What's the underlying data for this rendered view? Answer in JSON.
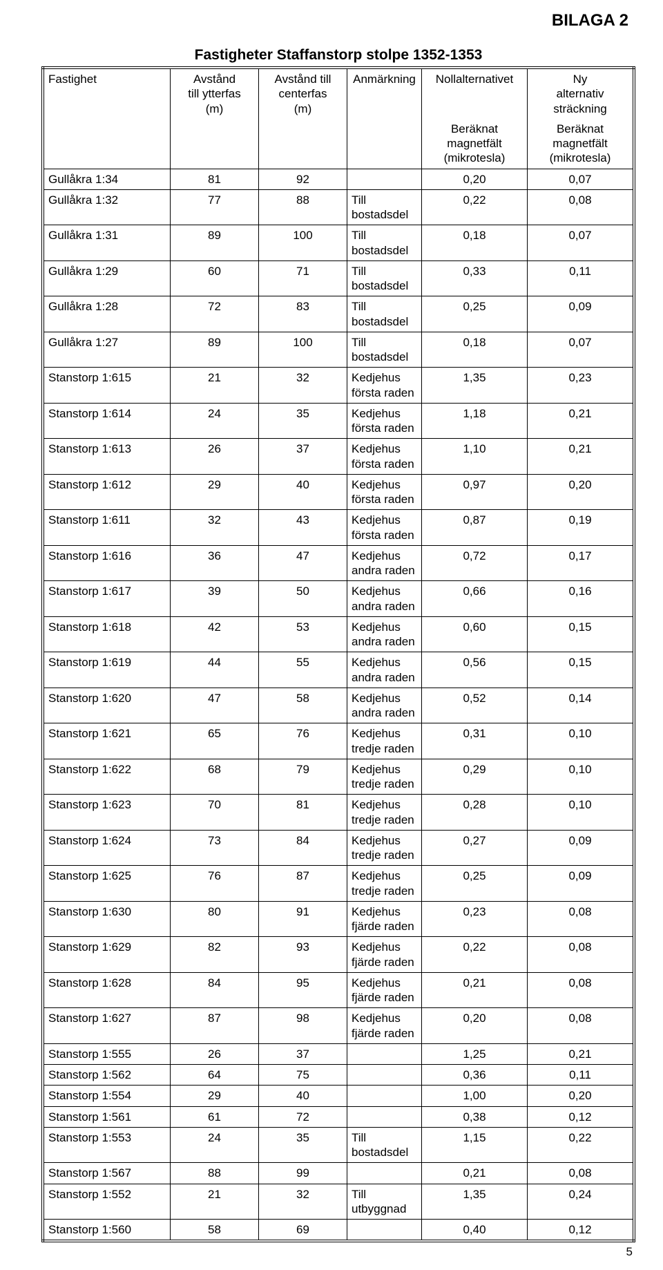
{
  "bilaga": "BILAGA 2",
  "title": "Fastigheter Staffanstorp stolpe 1352-1353",
  "header": {
    "fastighet": "Fastighet",
    "ytterfas": "Avstånd\ntill ytterfas\n(m)",
    "centerfas": "Avstånd till\ncenterfas\n(m)",
    "anm": "Anmärkning",
    "noll": "Nollalternativet",
    "alt": "Ny\nalternativ\nsträckning",
    "sub": "Beräknat\nmagnetfält\n(mikrotesla)"
  },
  "rows": [
    {
      "f": "Gullåkra 1:34",
      "y": "81",
      "c": "92",
      "a": "",
      "n": "0,20",
      "al": "0,07"
    },
    {
      "f": "Gullåkra 1:32",
      "y": "77",
      "c": "88",
      "a": "Till bostadsdel",
      "n": "0,22",
      "al": "0,08"
    },
    {
      "f": "Gullåkra 1:31",
      "y": "89",
      "c": "100",
      "a": "Till bostadsdel",
      "n": "0,18",
      "al": "0,07"
    },
    {
      "f": "Gullåkra 1:29",
      "y": "60",
      "c": "71",
      "a": "Till bostadsdel",
      "n": "0,33",
      "al": "0,11"
    },
    {
      "f": "Gullåkra 1:28",
      "y": "72",
      "c": "83",
      "a": "Till bostadsdel",
      "n": "0,25",
      "al": "0,09"
    },
    {
      "f": "Gullåkra 1:27",
      "y": "89",
      "c": "100",
      "a": "Till bostadsdel",
      "n": "0,18",
      "al": "0,07"
    },
    {
      "f": "Stanstorp 1:615",
      "y": "21",
      "c": "32",
      "a": "Kedjehus första raden",
      "n": "1,35",
      "al": "0,23"
    },
    {
      "f": "Stanstorp 1:614",
      "y": "24",
      "c": "35",
      "a": "Kedjehus första raden",
      "n": "1,18",
      "al": "0,21"
    },
    {
      "f": "Stanstorp 1:613",
      "y": "26",
      "c": "37",
      "a": "Kedjehus första raden",
      "n": "1,10",
      "al": "0,21"
    },
    {
      "f": "Stanstorp 1:612",
      "y": "29",
      "c": "40",
      "a": "Kedjehus första raden",
      "n": "0,97",
      "al": "0,20"
    },
    {
      "f": "Stanstorp 1:611",
      "y": "32",
      "c": "43",
      "a": "Kedjehus första raden",
      "n": "0,87",
      "al": "0,19"
    },
    {
      "f": "Stanstorp 1:616",
      "y": "36",
      "c": "47",
      "a": "Kedjehus andra raden",
      "n": "0,72",
      "al": "0,17"
    },
    {
      "f": "Stanstorp 1:617",
      "y": "39",
      "c": "50",
      "a": "Kedjehus andra raden",
      "n": "0,66",
      "al": "0,16"
    },
    {
      "f": "Stanstorp 1:618",
      "y": "42",
      "c": "53",
      "a": "Kedjehus andra raden",
      "n": "0,60",
      "al": "0,15"
    },
    {
      "f": "Stanstorp 1:619",
      "y": "44",
      "c": "55",
      "a": "Kedjehus andra raden",
      "n": "0,56",
      "al": "0,15"
    },
    {
      "f": "Stanstorp 1:620",
      "y": "47",
      "c": "58",
      "a": "Kedjehus andra raden",
      "n": "0,52",
      "al": "0,14"
    },
    {
      "f": "Stanstorp 1:621",
      "y": "65",
      "c": "76",
      "a": "Kedjehus tredje raden",
      "n": "0,31",
      "al": "0,10"
    },
    {
      "f": "Stanstorp 1:622",
      "y": "68",
      "c": "79",
      "a": "Kedjehus tredje raden",
      "n": "0,29",
      "al": "0,10"
    },
    {
      "f": "Stanstorp 1:623",
      "y": "70",
      "c": "81",
      "a": "Kedjehus tredje raden",
      "n": "0,28",
      "al": "0,10"
    },
    {
      "f": "Stanstorp 1:624",
      "y": "73",
      "c": "84",
      "a": "Kedjehus tredje raden",
      "n": "0,27",
      "al": "0,09"
    },
    {
      "f": "Stanstorp 1:625",
      "y": "76",
      "c": "87",
      "a": "Kedjehus tredje raden",
      "n": "0,25",
      "al": "0,09"
    },
    {
      "f": "Stanstorp 1:630",
      "y": "80",
      "c": "91",
      "a": "Kedjehus fjärde raden",
      "n": "0,23",
      "al": "0,08"
    },
    {
      "f": "Stanstorp 1:629",
      "y": "82",
      "c": "93",
      "a": "Kedjehus fjärde raden",
      "n": "0,22",
      "al": "0,08"
    },
    {
      "f": "Stanstorp 1:628",
      "y": "84",
      "c": "95",
      "a": "Kedjehus fjärde raden",
      "n": "0,21",
      "al": "0,08"
    },
    {
      "f": "Stanstorp 1:627",
      "y": "87",
      "c": "98",
      "a": "Kedjehus fjärde raden",
      "n": "0,20",
      "al": "0,08"
    },
    {
      "f": "Stanstorp 1:555",
      "y": "26",
      "c": "37",
      "a": "",
      "n": "1,25",
      "al": "0,21"
    },
    {
      "f": "Stanstorp 1:562",
      "y": "64",
      "c": "75",
      "a": "",
      "n": "0,36",
      "al": "0,11"
    },
    {
      "f": "Stanstorp 1:554",
      "y": "29",
      "c": "40",
      "a": "",
      "n": "1,00",
      "al": "0,20"
    },
    {
      "f": "Stanstorp 1:561",
      "y": "61",
      "c": "72",
      "a": "",
      "n": "0,38",
      "al": "0,12"
    },
    {
      "f": "Stanstorp 1:553",
      "y": "24",
      "c": "35",
      "a": "Till bostadsdel",
      "n": "1,15",
      "al": "0,22"
    },
    {
      "f": "Stanstorp 1:567",
      "y": "88",
      "c": "99",
      "a": "",
      "n": "0,21",
      "al": "0,08"
    },
    {
      "f": "Stanstorp 1:552",
      "y": "21",
      "c": "32",
      "a": "Till utbyggnad",
      "n": "1,35",
      "al": "0,24"
    },
    {
      "f": "Stanstorp 1:560",
      "y": "58",
      "c": "69",
      "a": "",
      "n": "0,40",
      "al": "0,12"
    }
  ],
  "pageNumber": "5"
}
